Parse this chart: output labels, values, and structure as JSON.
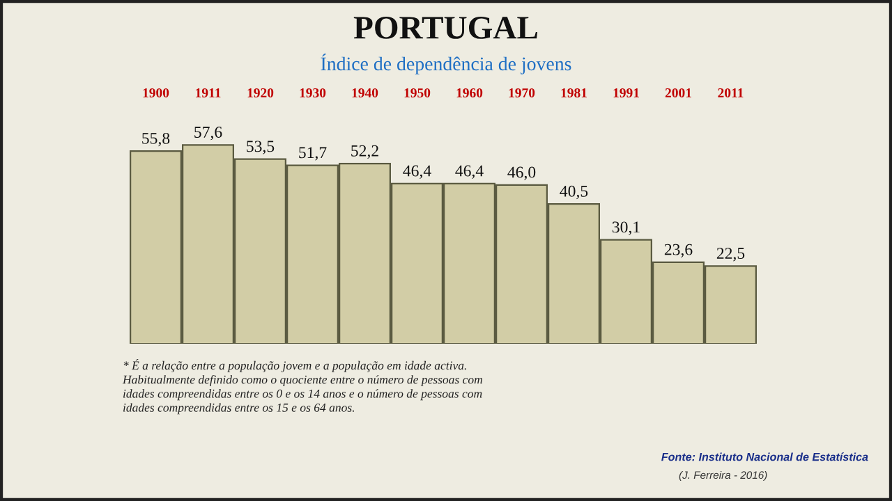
{
  "chart_data": {
    "type": "bar",
    "title": "PORTUGAL",
    "subtitle": "Índice de dependência de jovens",
    "categories": [
      "1900",
      "1911",
      "1920",
      "1930",
      "1940",
      "1950",
      "1960",
      "1970",
      "1981",
      "1991",
      "2001",
      "2011"
    ],
    "values": [
      55.8,
      57.6,
      53.5,
      51.7,
      52.2,
      46.4,
      46.4,
      46.0,
      40.5,
      30.1,
      23.6,
      22.5
    ],
    "value_labels": [
      "55,8",
      "57,6",
      "53,5",
      "51,7",
      "52,2",
      "46,4",
      "46,4",
      "46,0",
      "40,5",
      "30,1",
      "23,6",
      "22,5"
    ],
    "color": "#d2cda6",
    "annotations": [
      "* É a relação entre a população jovem e a população em idade activa.\nHabitualmente definido como o quociente entre o número de pessoas com\nidades compreendidas entre os 0 e os 14 anos e o número de pessoas com\nidades compreendidas entre os 15 e os 64 anos.",
      "Fonte: Instituto Nacional de Estatística",
      "(J. Ferreira - 2016)"
    ]
  }
}
